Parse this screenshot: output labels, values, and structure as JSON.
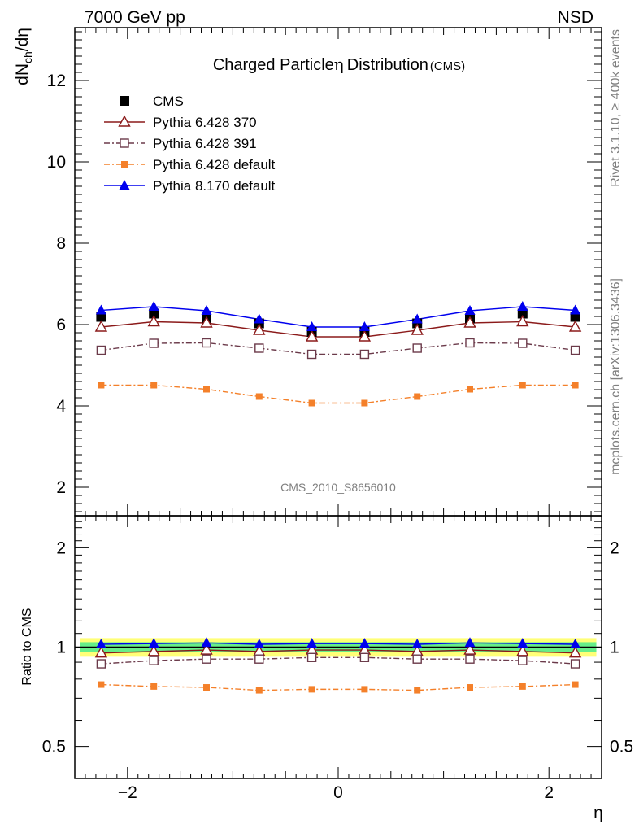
{
  "header": {
    "left": "7000 GeV pp",
    "right": "NSD"
  },
  "side_labels": {
    "rivet": "Rivet 3.1.10, ≥ 400k events",
    "mcplots": "mcplots.cern.ch [arXiv:1306.3436]"
  },
  "colors": {
    "cms": "#000000",
    "py370": "#8b1a1a",
    "py391": "#6b3a4a",
    "pydefault": "#f4802a",
    "py8": "#0000ee",
    "band_inner": "#66ee88",
    "band_outer": "#ffff77"
  },
  "chart_data": [
    {
      "type": "line",
      "title": "Charged Particle",
      "title_eta": "η",
      "title_rest": "Distribution",
      "title_suffix": "(CMS)",
      "watermark": "CMS_2010_S8656010",
      "ylabel": "dN",
      "ylabel_sub": "ch",
      "ylabel_rest": "/dη",
      "xlim": [
        -2.5,
        2.5
      ],
      "ylim": [
        1.3,
        13.3
      ],
      "yticks": [
        2,
        4,
        6,
        8,
        10,
        12
      ],
      "ytick_labels": [
        "2",
        "4",
        "6",
        "8",
        "10",
        "12"
      ],
      "legend_position": "top-left",
      "x": [
        -2.25,
        -1.75,
        -1.25,
        -0.75,
        -0.25,
        0.25,
        0.75,
        1.25,
        1.75,
        2.25
      ],
      "series": [
        {
          "name": "CMS",
          "key": "cms",
          "marker": "square-filled",
          "line": "none",
          "values": [
            6.19,
            6.27,
            6.15,
            6.03,
            5.82,
            5.82,
            6.03,
            6.15,
            6.27,
            6.19
          ]
        },
        {
          "name": "Pythia 6.428 370",
          "key": "py370",
          "marker": "triangle-open",
          "line": "solid",
          "values": [
            5.94,
            6.07,
            6.04,
            5.86,
            5.7,
            5.7,
            5.86,
            6.04,
            6.07,
            5.94
          ]
        },
        {
          "name": "Pythia 6.428 391",
          "key": "py391",
          "marker": "square-open",
          "line": "dashdot",
          "values": [
            5.37,
            5.54,
            5.55,
            5.42,
            5.27,
            5.27,
            5.42,
            5.55,
            5.54,
            5.37
          ]
        },
        {
          "name": "Pythia 6.428 default",
          "key": "pydefault",
          "marker": "square-small",
          "line": "dashdot",
          "values": [
            4.51,
            4.51,
            4.41,
            4.23,
            4.07,
            4.07,
            4.23,
            4.41,
            4.51,
            4.51
          ]
        },
        {
          "name": "Pythia 8.170 default",
          "key": "py8",
          "marker": "triangle-filled",
          "line": "solid",
          "values": [
            6.35,
            6.44,
            6.34,
            6.13,
            5.94,
            5.94,
            6.13,
            6.34,
            6.44,
            6.35
          ]
        }
      ]
    },
    {
      "type": "line",
      "ylabel": "Ratio to CMS",
      "xlabel": "η",
      "xlim": [
        -2.5,
        2.5
      ],
      "ylim": [
        0.4,
        2.5
      ],
      "scale": "log",
      "yticks": [
        0.5,
        1,
        2
      ],
      "ytick_labels": [
        "0.5",
        "1",
        "2"
      ],
      "xticks": [
        -2,
        0,
        2
      ],
      "xtick_labels": [
        "−2",
        "0",
        "2"
      ],
      "band_inner": [
        0.965,
        1.035
      ],
      "band_outer": [
        0.935,
        1.065
      ],
      "x": [
        -2.25,
        -1.75,
        -1.25,
        -0.75,
        -0.25,
        0.25,
        0.75,
        1.25,
        1.75,
        2.25
      ],
      "series": [
        {
          "name": "Pythia 6.428 370",
          "key": "py370",
          "marker": "triangle-open",
          "line": "solid",
          "values": [
            0.96,
            0.97,
            0.98,
            0.97,
            0.98,
            0.98,
            0.97,
            0.98,
            0.97,
            0.96
          ]
        },
        {
          "name": "Pythia 6.428 391",
          "key": "py391",
          "marker": "square-open",
          "line": "dashdot",
          "values": [
            0.89,
            0.91,
            0.92,
            0.92,
            0.93,
            0.93,
            0.92,
            0.92,
            0.91,
            0.89
          ]
        },
        {
          "name": "Pythia 6.428 default",
          "key": "pydefault",
          "marker": "square-small",
          "line": "dashdot",
          "values": [
            0.77,
            0.76,
            0.755,
            0.74,
            0.745,
            0.745,
            0.74,
            0.755,
            0.76,
            0.77
          ]
        },
        {
          "name": "Pythia 8.170 default",
          "key": "py8",
          "marker": "triangle-filled",
          "line": "solid",
          "values": [
            1.02,
            1.025,
            1.03,
            1.02,
            1.025,
            1.025,
            1.02,
            1.03,
            1.025,
            1.02
          ]
        }
      ]
    }
  ]
}
